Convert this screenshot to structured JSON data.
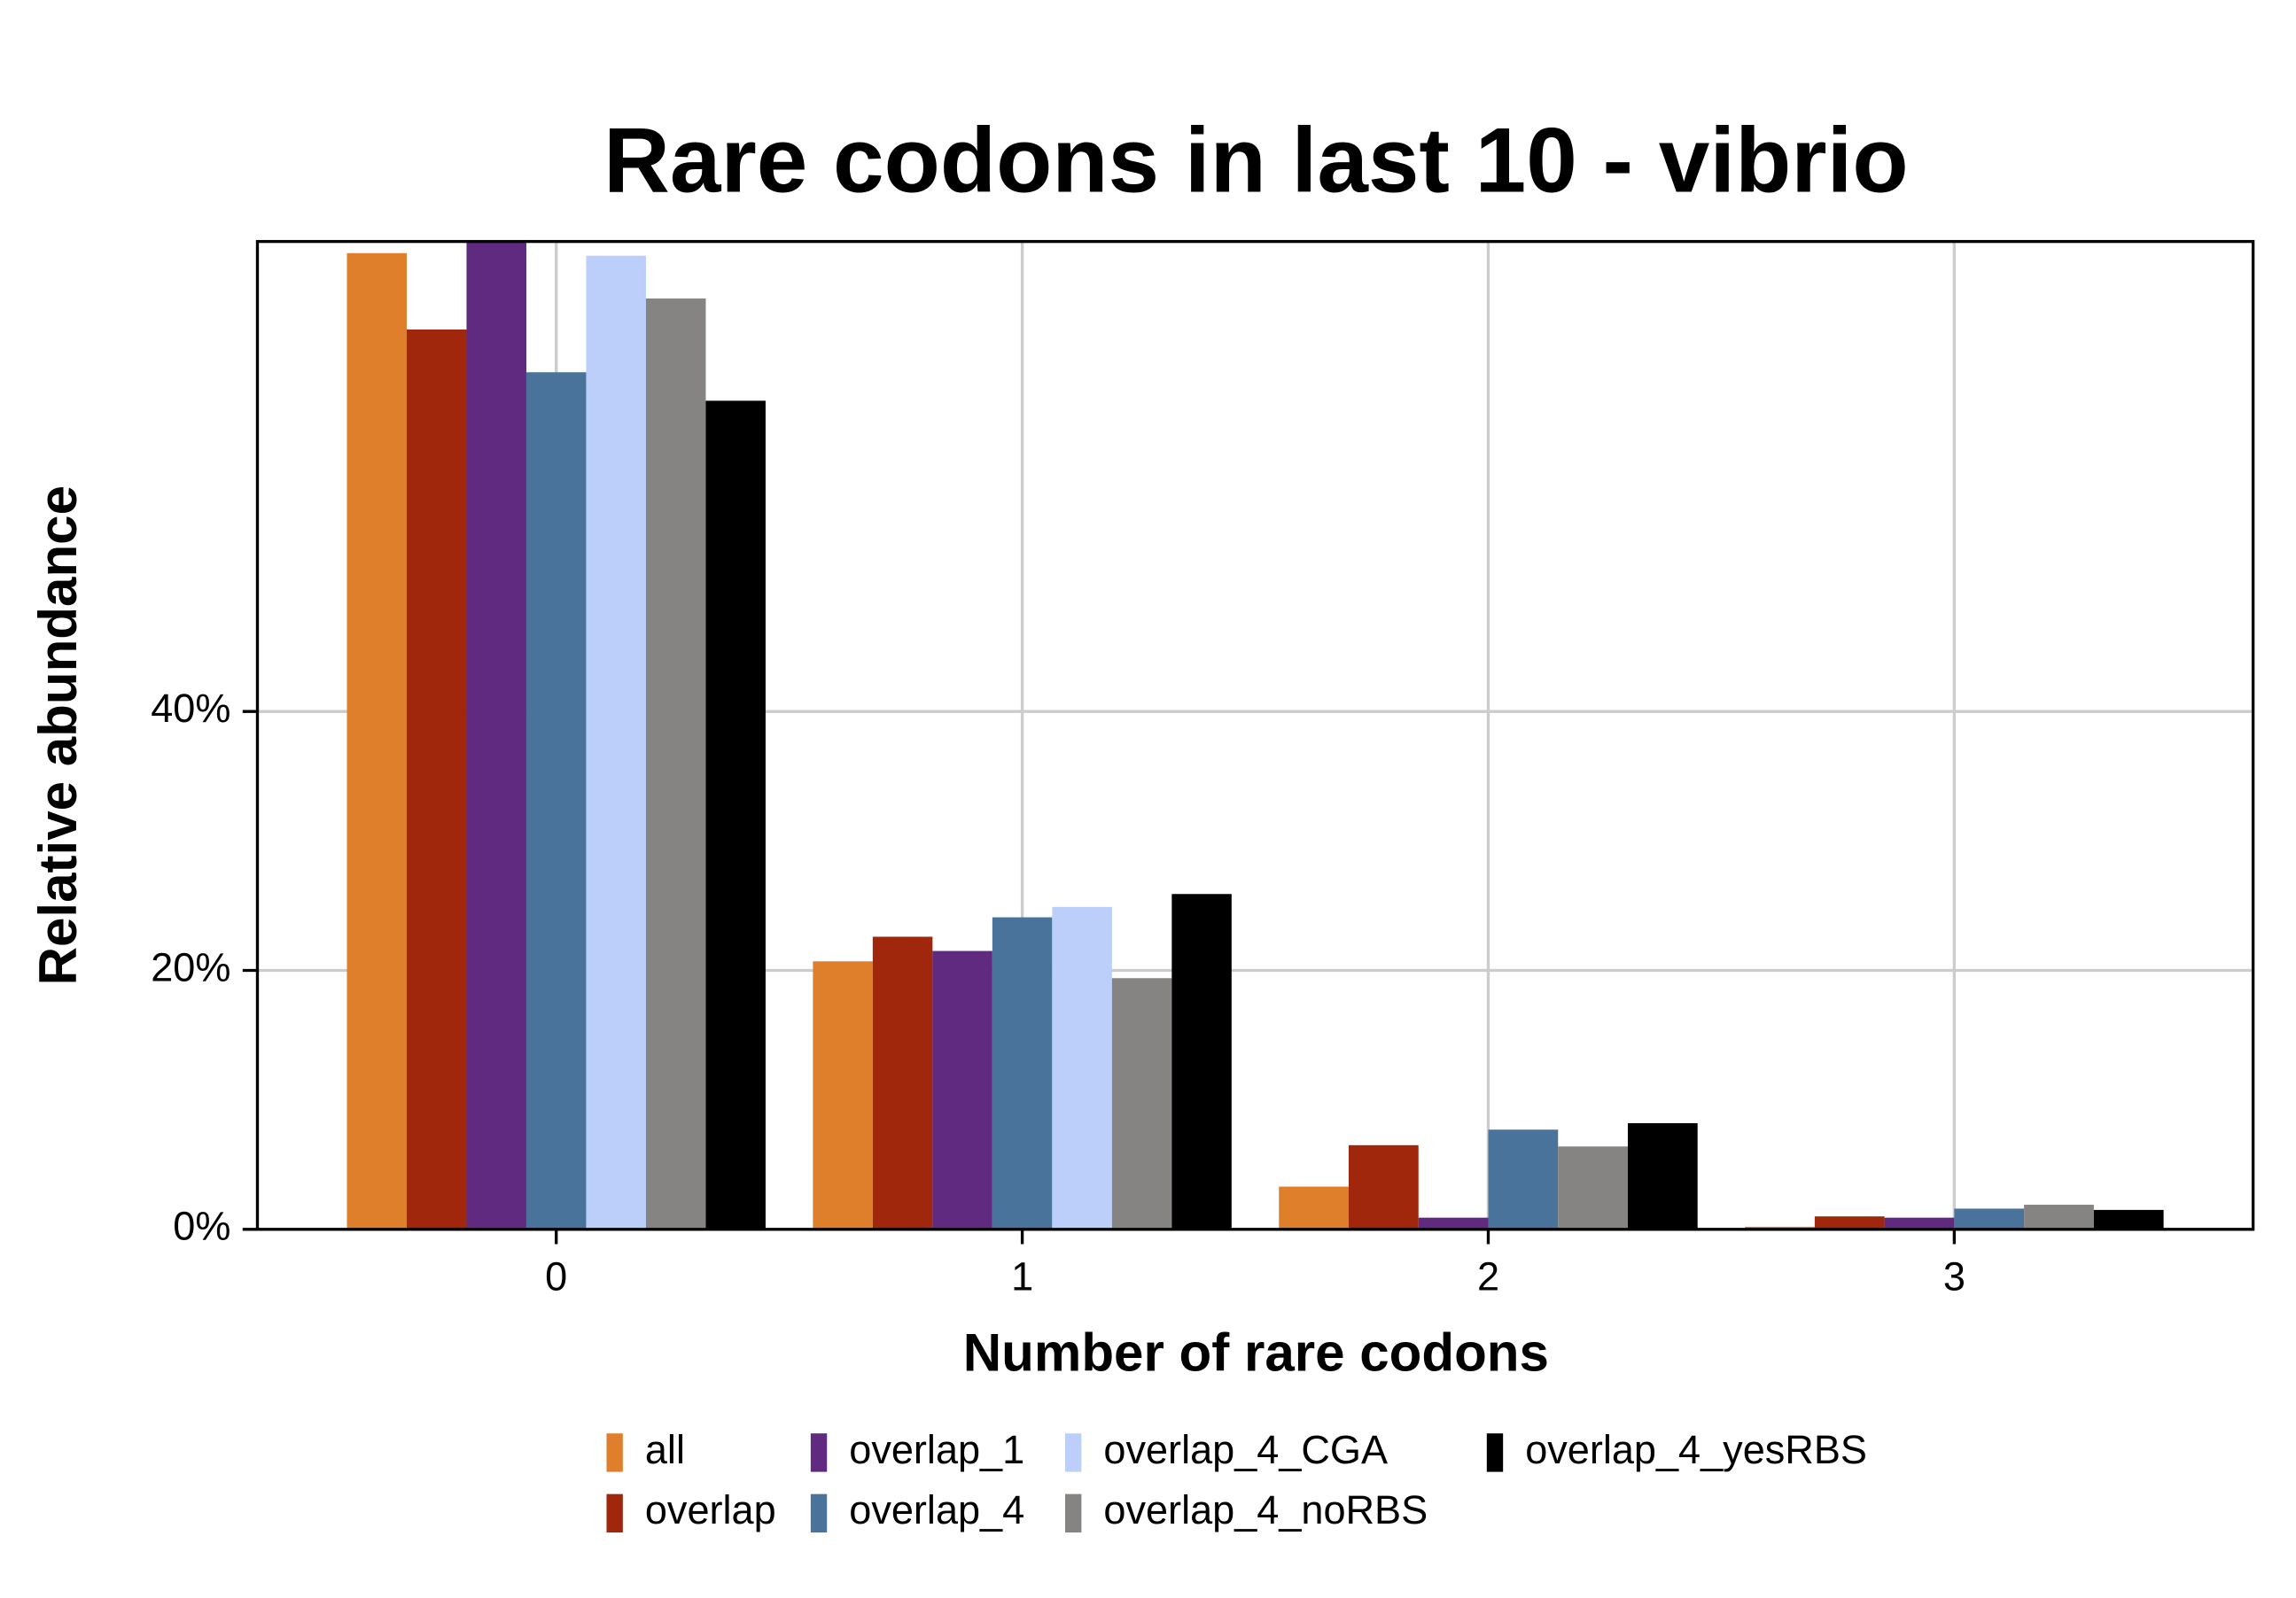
{
  "chart_data": {
    "type": "bar",
    "title": "Rare codons in last 10 - vibrio",
    "x_label": "Number of rare codons",
    "y_label": "Relative abundance",
    "categories": [
      "0",
      "1",
      "2",
      "3"
    ],
    "series": [
      {
        "name": "all",
        "color": "#e07f2b",
        "values": [
          75.4,
          20.7,
          3.3,
          0.2
        ]
      },
      {
        "name": "overlap",
        "color": "#a0270c",
        "values": [
          69.5,
          22.6,
          6.5,
          1.0
        ]
      },
      {
        "name": "overlap_1",
        "color": "#5f2a7f",
        "values": [
          76.3,
          21.5,
          0.9,
          0.9
        ]
      },
      {
        "name": "overlap_4",
        "color": "#4a739c",
        "values": [
          66.2,
          24.1,
          7.7,
          1.6
        ]
      },
      {
        "name": "overlap_4_CGA",
        "color": "#bccffa",
        "values": [
          75.2,
          24.9,
          null,
          null
        ]
      },
      {
        "name": "overlap_4_noRBS",
        "color": "#858482",
        "values": [
          71.9,
          19.4,
          6.4,
          1.9
        ]
      },
      {
        "name": "overlap_4_yesRBS",
        "color": "#000000",
        "values": [
          64.0,
          25.9,
          8.2,
          1.5
        ]
      }
    ],
    "ylim": [
      0,
      76.3
    ],
    "yticks": [
      {
        "value": 0,
        "label": "0%"
      },
      {
        "value": 20,
        "label": "20%"
      },
      {
        "value": 40,
        "label": "40%"
      }
    ],
    "grid": true
  }
}
